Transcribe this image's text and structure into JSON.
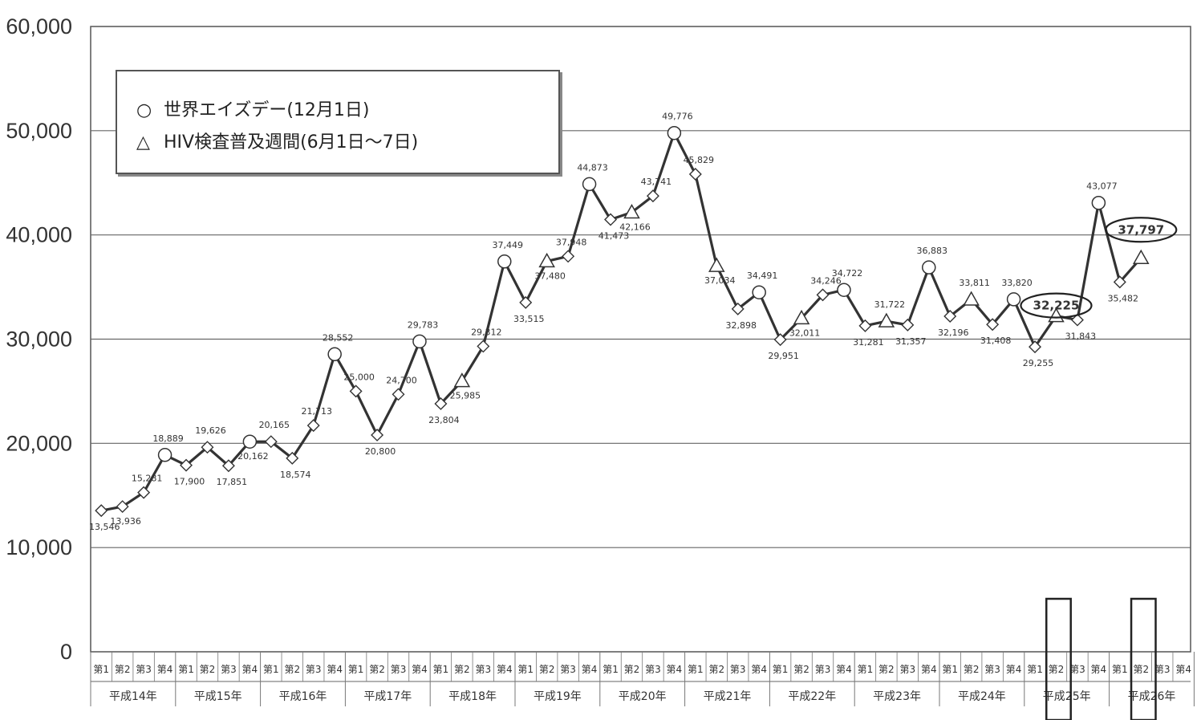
{
  "chart_data": {
    "type": "line",
    "title": "",
    "xlabel": "",
    "ylabel": "",
    "ylim": [
      0,
      60000
    ],
    "yticks": [
      "0",
      "10,000",
      "20,000",
      "30,000",
      "40,000",
      "50,000",
      "60,000"
    ],
    "ytick_values": [
      0,
      10000,
      20000,
      30000,
      40000,
      50000,
      60000
    ],
    "grid": true,
    "legend_position": "top-left",
    "legend": [
      {
        "symbol": "○",
        "label": "世界エイズデー(12月1日)"
      },
      {
        "symbol": "△",
        "label": "HIV検査普及週間(6月1日〜7日)"
      }
    ],
    "years": [
      "平成14年",
      "平成15年",
      "平成16年",
      "平成17年",
      "平成18年",
      "平成19年",
      "平成20年",
      "平成21年",
      "平成22年",
      "平成23年",
      "平成24年",
      "平成25年",
      "平成26年"
    ],
    "quarters": [
      "第1",
      "第2",
      "第3",
      "第4"
    ],
    "series": [
      {
        "values": [
          13546,
          13936,
          15281,
          18889,
          17900,
          19626,
          17851,
          20162,
          20165,
          18574,
          21713,
          28552,
          25000,
          20800,
          24700,
          29783,
          23804,
          25985,
          29312,
          37449,
          33515,
          37480,
          37948,
          44873,
          41473,
          42166,
          43741,
          49776,
          45829,
          37034,
          32898,
          34491,
          29951,
          32011,
          34246,
          34722,
          31281,
          31722,
          31357,
          36883,
          32196,
          33811,
          31408,
          33820,
          29255,
          32225,
          31843,
          43077,
          35482,
          37797
        ],
        "markers": [
          "diamond",
          "diamond",
          "diamond",
          "circle",
          "diamond",
          "diamond",
          "diamond",
          "circle",
          "diamond",
          "diamond",
          "diamond",
          "circle",
          "diamond",
          "diamond",
          "diamond",
          "circle",
          "diamond",
          "triangle",
          "diamond",
          "circle",
          "diamond",
          "triangle",
          "diamond",
          "circle",
          "diamond",
          "triangle",
          "diamond",
          "circle",
          "diamond",
          "triangle",
          "diamond",
          "circle",
          "diamond",
          "triangle",
          "diamond",
          "circle",
          "diamond",
          "triangle",
          "diamond",
          "circle",
          "diamond",
          "triangle",
          "diamond",
          "circle",
          "diamond",
          "triangle",
          "diamond",
          "circle",
          "diamond",
          "triangle"
        ],
        "labels": [
          "13,546",
          "13,936",
          "15,281",
          "18,889",
          "17,900",
          "19,626",
          "17,851",
          "20,162",
          "20,165",
          "18,574",
          "21,713",
          "28,552",
          "25,000",
          "20,800",
          "24,700",
          "29,783",
          "23,804",
          "25,985",
          "29,312",
          "37,449",
          "33,515",
          "37,480",
          "37,948",
          "44,873",
          "41,473",
          "42,166",
          "43,741",
          "49,776",
          "45,829",
          "37,034",
          "32,898",
          "34,491",
          "29,951",
          "32,011",
          "34,246",
          "34,722",
          "31,281",
          "31,722",
          "31,357",
          "36,883",
          "32,196",
          "33,811",
          "31,408",
          "33,820",
          "29,255",
          "32,225",
          "31,843",
          "43,077",
          "35,482",
          "37,797"
        ]
      }
    ],
    "highlighted_labels": [
      "32,225",
      "37,797"
    ],
    "highlighted_quarters": [
      {
        "year": "平成25年",
        "quarter": "第2"
      },
      {
        "year": "平成26年",
        "quarter": "第2"
      }
    ]
  }
}
